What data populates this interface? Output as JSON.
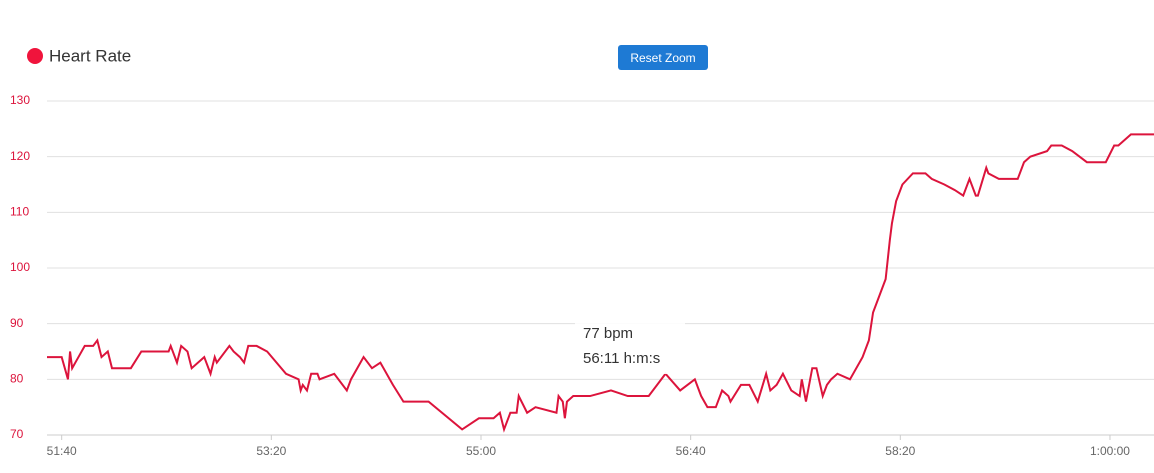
{
  "chart_data": {
    "type": "line",
    "legend": "Heart Rate",
    "button": "Reset Zoom",
    "tooltip": {
      "value_text": "77 bpm",
      "time_text": "56:11 h:m:s"
    },
    "x": [
      3093,
      3100,
      3103,
      3104,
      3105,
      3108,
      3111,
      3115,
      3117,
      3119,
      3122,
      3124,
      3133,
      3138,
      3151,
      3152,
      3155,
      3157,
      3160,
      3162,
      3168,
      3171,
      3173,
      3174,
      3180,
      3182,
      3185,
      3187,
      3189,
      3193,
      3198,
      3207,
      3213,
      3214,
      3215,
      3217,
      3219,
      3222,
      3223,
      3230,
      3236,
      3238,
      3244,
      3248,
      3252,
      3258,
      3263,
      3275,
      3291,
      3299,
      3306,
      3309,
      3311,
      3314,
      3317,
      3318,
      3322,
      3326,
      3336,
      3337,
      3339,
      3340,
      3341,
      3344,
      3352,
      3362,
      3370,
      3380,
      3388,
      3395,
      3402,
      3405,
      3408,
      3412,
      3415,
      3418,
      3419,
      3424,
      3428,
      3432,
      3436,
      3438,
      3441,
      3444,
      3448,
      3452,
      3453,
      3455,
      3458,
      3460,
      3463,
      3465,
      3467,
      3470,
      3476,
      3482,
      3485,
      3487,
      3493,
      3495,
      3496,
      3498,
      3501,
      3506,
      3512,
      3515,
      3521,
      3526,
      3530,
      3533,
      3536,
      3537,
      3541,
      3542,
      3547,
      3550,
      3556,
      3559,
      3562,
      3570,
      3572,
      3577,
      3582,
      3589,
      3598,
      3602,
      3604,
      3610,
      3621
    ],
    "series": [
      {
        "name": "Heart Rate",
        "color": "#dc143c",
        "values": [
          84,
          84,
          80,
          85,
          82,
          84,
          86,
          86,
          87,
          84,
          85,
          82,
          82,
          85,
          85,
          86,
          83,
          86,
          85,
          82,
          84,
          81,
          84,
          83,
          86,
          85,
          84,
          83,
          86,
          86,
          85,
          81,
          80,
          78,
          79,
          78,
          81,
          81,
          80,
          81,
          78,
          80,
          84,
          82,
          83,
          79,
          76,
          76,
          71,
          73,
          73,
          74,
          71,
          74,
          74,
          77,
          74,
          75,
          74,
          77,
          76,
          73,
          76,
          77,
          77,
          78,
          77,
          77,
          81,
          78,
          80,
          77,
          75,
          75,
          78,
          77,
          76,
          79,
          79,
          76,
          81,
          78,
          79,
          81,
          78,
          77,
          80,
          76,
          82,
          82,
          77,
          79,
          80,
          81,
          80,
          84,
          87,
          92,
          98,
          105,
          108,
          112,
          115,
          117,
          117,
          116,
          115,
          114,
          113,
          116,
          113,
          113,
          118,
          117,
          116,
          116,
          116,
          119,
          120,
          121,
          122,
          122,
          121,
          119,
          119,
          122,
          122,
          124,
          124
        ]
      }
    ],
    "xlim": [
      3093,
      3621
    ],
    "ylim": [
      70,
      130
    ],
    "xticks": [
      {
        "value": 3100,
        "label": "51:40"
      },
      {
        "value": 3200,
        "label": "53:20"
      },
      {
        "value": 3300,
        "label": "55:00"
      },
      {
        "value": 3400,
        "label": "56:40"
      },
      {
        "value": 3500,
        "label": "58:20"
      },
      {
        "value": 3600,
        "label": "1:00:00"
      }
    ],
    "yticks": [
      70,
      80,
      90,
      100,
      110,
      120,
      130
    ],
    "grid": true
  }
}
